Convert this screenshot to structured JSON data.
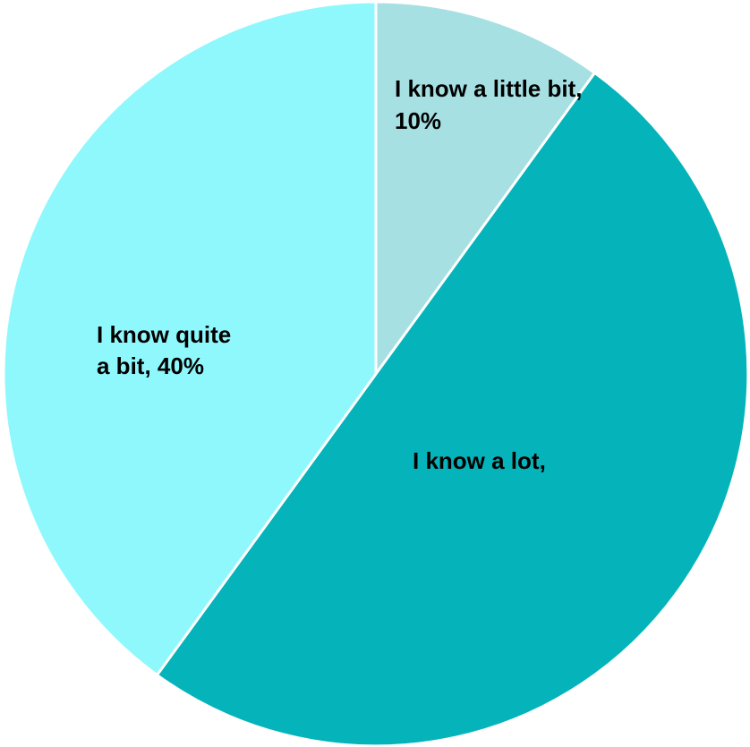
{
  "chart_data": {
    "type": "pie",
    "title": "",
    "slices": [
      {
        "label_lines": [
          "I know a little bit,",
          "10%"
        ],
        "category": "I know a little bit",
        "value": 10,
        "color": "#a6e0e2"
      },
      {
        "label_lines": [
          "I know a lot,"
        ],
        "category": "I know a lot",
        "value": 50,
        "color": "#04b4ba"
      },
      {
        "label_lines": [
          "I know quite",
          "a bit, 40%"
        ],
        "category": "I know quite a bit",
        "value": 40,
        "color": "#8ff8fc"
      }
    ],
    "start_angle_deg": 0,
    "direction": "clockwise",
    "legend": "none"
  }
}
